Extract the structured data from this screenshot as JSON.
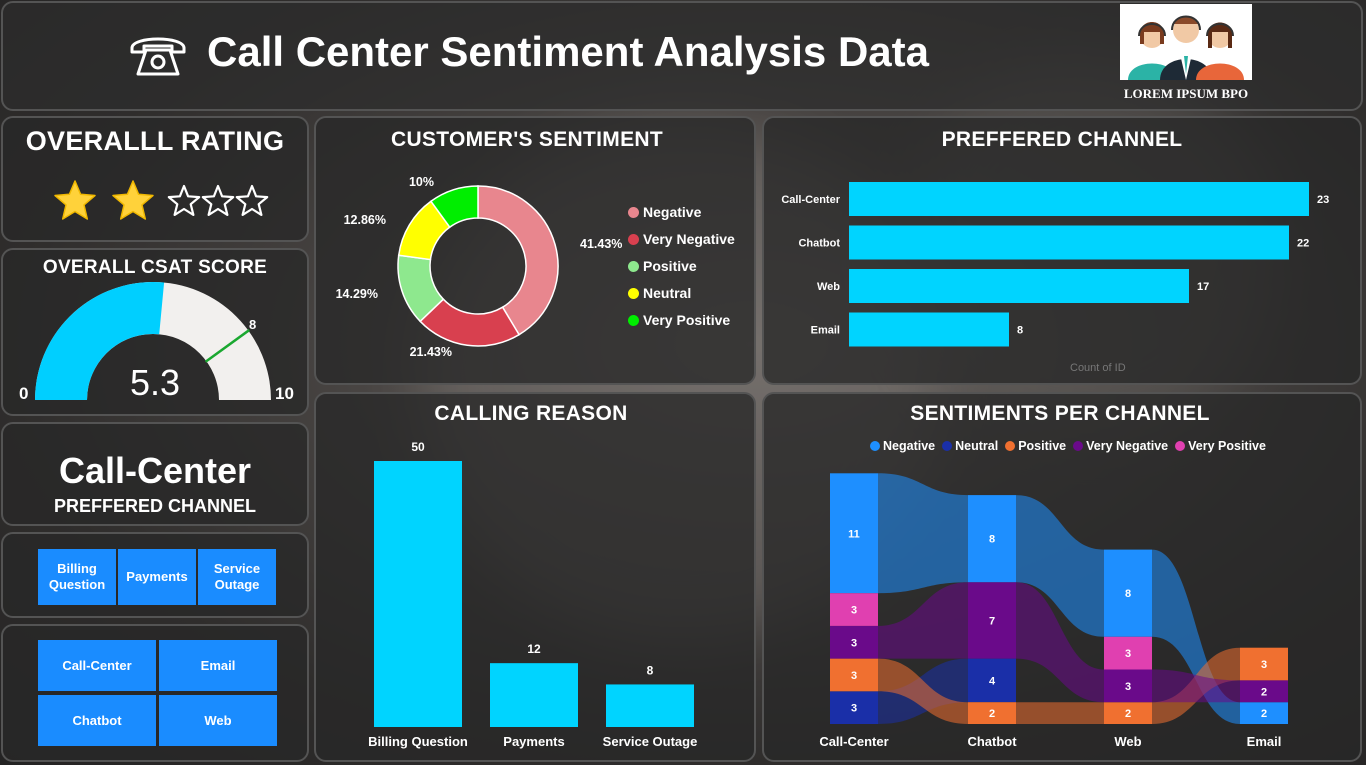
{
  "header": {
    "title": "Call Center Sentiment Analysis Data",
    "logo_caption": "LOREM IPSUM BPO",
    "phone_icon": "phone-icon"
  },
  "rating": {
    "title": "OVERALLL RATING",
    "value": 2,
    "max": 5
  },
  "csat": {
    "title": "OVERALL CSAT SCORE",
    "value": "5.3",
    "min_label": "0",
    "max_label": "10",
    "target_label": "8",
    "gauge_value": 5.3,
    "gauge_min": 0,
    "gauge_max": 10,
    "gauge_target": 8,
    "fill_color": "#00cfff"
  },
  "preferred_card": {
    "value": "Call-Center",
    "label": "PREFFERED CHANNEL"
  },
  "reason_filters": [
    "Billing Question",
    "Payments",
    "Service Outage"
  ],
  "channel_filters": [
    "Call-Center",
    "Email",
    "Chatbot",
    "Web"
  ],
  "sentiment_chart": {
    "title": "CUSTOMER'S SENTIMENT",
    "legend": [
      "Negative",
      "Very Negative",
      "Positive",
      "Neutral",
      "Very Positive"
    ]
  },
  "channel_chart": {
    "title": "PREFFERED CHANNEL",
    "axis_label": "Count of ID"
  },
  "reason_chart": {
    "title": "CALLING REASON"
  },
  "ribbon_chart": {
    "title": "SENTIMENTS PER CHANNEL",
    "legend": [
      "Negative",
      "Neutral",
      "Positive",
      "Very Negative",
      "Very Positive"
    ]
  },
  "chart_data": [
    {
      "type": "pie",
      "title": "CUSTOMER'S SENTIMENT",
      "categories": [
        "Negative",
        "Very Negative",
        "Positive",
        "Neutral",
        "Very Positive"
      ],
      "values": [
        41.43,
        21.43,
        14.29,
        12.86,
        10
      ],
      "labels": [
        "41.43%",
        "21.43%",
        "14.29%",
        "12.86%",
        "10%"
      ],
      "colors": [
        "#e8868e",
        "#d8404f",
        "#8ee88e",
        "#ffff00",
        "#00ee00"
      ]
    },
    {
      "type": "bar",
      "title": "PREFFERED CHANNEL",
      "orientation": "horizontal",
      "categories": [
        "Call-Center",
        "Chatbot",
        "Web",
        "Email"
      ],
      "values": [
        23,
        22,
        17,
        8
      ],
      "xlabel": "Count of ID",
      "xlim": [
        0,
        24
      ],
      "color": "#00d4ff"
    },
    {
      "type": "bar",
      "title": "CALLING REASON",
      "categories": [
        "Billing Question",
        "Payments",
        "Service Outage"
      ],
      "values": [
        50,
        12,
        8
      ],
      "ylim": [
        0,
        50
      ],
      "color": "#00d4ff"
    },
    {
      "type": "area",
      "subtype": "ribbon",
      "title": "SENTIMENTS PER CHANNEL",
      "categories": [
        "Call-Center",
        "Chatbot",
        "Web",
        "Email"
      ],
      "series": [
        {
          "name": "Negative",
          "values": [
            11,
            8,
            8,
            2
          ],
          "color": "#1e8fff"
        },
        {
          "name": "Neutral",
          "values": [
            3,
            4,
            0,
            0
          ],
          "color": "#1a2fa8"
        },
        {
          "name": "Positive",
          "values": [
            3,
            2,
            2,
            3
          ],
          "color": "#f07030"
        },
        {
          "name": "Very Negative",
          "values": [
            3,
            7,
            3,
            2
          ],
          "color": "#6a0a8a"
        },
        {
          "name": "Very Positive",
          "values": [
            3,
            0,
            3,
            0
          ],
          "color": "#e040b0"
        }
      ]
    }
  ]
}
